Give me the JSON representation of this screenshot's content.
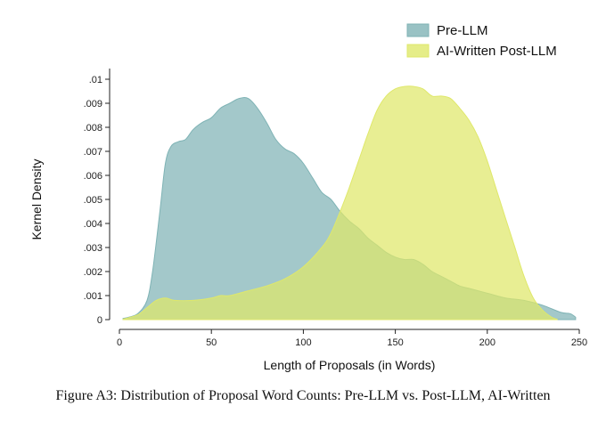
{
  "chart_data": {
    "type": "area",
    "xlabel": "Length of Proposals (in Words)",
    "ylabel": "Kernel Density",
    "xlim": [
      0,
      250
    ],
    "ylim": [
      0,
      0.01
    ],
    "x_ticks": [
      "0",
      "50",
      "100",
      "150",
      "200",
      "250"
    ],
    "y_ticks": [
      "0",
      ".001",
      ".002",
      ".003",
      ".004",
      ".005",
      ".006",
      ".007",
      ".008",
      ".009",
      ".01"
    ],
    "grid": false,
    "legend_position": "top-right",
    "series": [
      {
        "name": "Pre-LLM",
        "color": "#7fb3b5",
        "x": [
          2,
          5,
          10,
          15,
          18,
          22,
          25,
          28,
          32,
          36,
          40,
          45,
          50,
          55,
          60,
          65,
          70,
          75,
          80,
          85,
          90,
          95,
          100,
          105,
          110,
          115,
          120,
          125,
          130,
          135,
          140,
          145,
          150,
          155,
          160,
          165,
          170,
          175,
          180,
          185,
          190,
          195,
          200,
          210,
          220,
          230,
          240,
          245,
          248
        ],
        "y": [
          5e-05,
          0.0001,
          0.00025,
          0.0008,
          0.002,
          0.0045,
          0.0065,
          0.0072,
          0.0074,
          0.0075,
          0.0079,
          0.0082,
          0.0084,
          0.0088,
          0.009,
          0.0092,
          0.0092,
          0.0088,
          0.0082,
          0.0075,
          0.0071,
          0.0069,
          0.0065,
          0.0059,
          0.0053,
          0.005,
          0.0045,
          0.0041,
          0.0038,
          0.0034,
          0.0031,
          0.0028,
          0.0026,
          0.0025,
          0.0025,
          0.0023,
          0.002,
          0.0018,
          0.0016,
          0.0014,
          0.0013,
          0.0012,
          0.0011,
          0.0009,
          0.0008,
          0.0006,
          0.0003,
          0.00025,
          0.0001
        ]
      },
      {
        "name": "AI-Written Post-LLM",
        "color": "#dfe86a",
        "x": [
          2,
          10,
          15,
          20,
          25,
          30,
          40,
          50,
          55,
          60,
          70,
          80,
          90,
          100,
          110,
          115,
          120,
          125,
          130,
          135,
          140,
          145,
          150,
          155,
          160,
          165,
          170,
          175,
          180,
          185,
          190,
          195,
          200,
          205,
          210,
          215,
          220,
          225,
          230,
          235,
          238
        ],
        "y": [
          2e-05,
          0.0002,
          0.0005,
          0.0008,
          0.0009,
          0.0008,
          0.0008,
          0.0009,
          0.001,
          0.001,
          0.0012,
          0.0014,
          0.0017,
          0.0022,
          0.003,
          0.0036,
          0.0045,
          0.0055,
          0.0066,
          0.0077,
          0.0087,
          0.0093,
          0.0096,
          0.0097,
          0.0097,
          0.0096,
          0.0093,
          0.0093,
          0.0092,
          0.0088,
          0.0083,
          0.0076,
          0.0066,
          0.0054,
          0.0042,
          0.003,
          0.0018,
          0.0009,
          0.0004,
          0.0001,
          2e-05
        ]
      }
    ]
  },
  "caption": "Figure A3: Distribution of Proposal Word Counts: Pre-LLM vs. Post-LLM, AI-Written"
}
